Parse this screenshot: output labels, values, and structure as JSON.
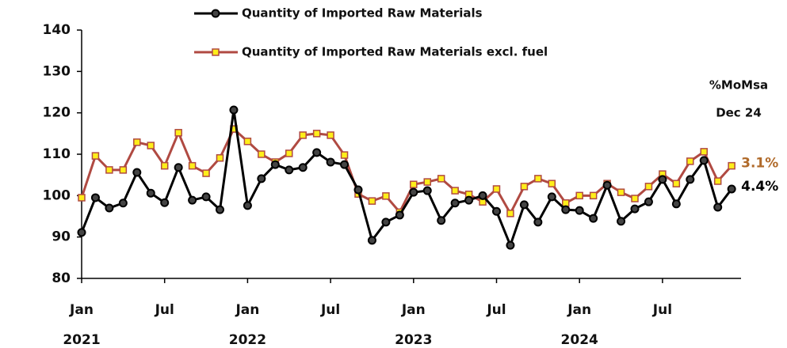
{
  "chart_data": {
    "type": "line",
    "categories": [
      "Jan",
      null,
      null,
      null,
      null,
      null,
      "Jul",
      null,
      null,
      null,
      null,
      null,
      "Jan",
      null,
      null,
      null,
      null,
      null,
      "Jul",
      null,
      null,
      null,
      null,
      null,
      "Jan",
      null,
      null,
      null,
      null,
      null,
      "Jul",
      null,
      null,
      null,
      null,
      null,
      "Jan",
      null,
      null,
      null,
      null,
      null,
      "Jul",
      null,
      null,
      null,
      null,
      null
    ],
    "year_labels": [
      "2021",
      "2022",
      "2023",
      "2024"
    ],
    "series": [
      {
        "name": "Quantity of Imported Raw Materials",
        "color": "#000000",
        "marker": "circle",
        "end_label": "4.4%",
        "end_label_color": "#000000",
        "values": [
          91.1,
          99.5,
          97,
          98.2,
          105.6,
          100.6,
          98.3,
          106.8,
          98.9,
          99.7,
          96.6,
          120.7,
          97.6,
          104.1,
          107.5,
          106.2,
          106.8,
          110.4,
          108.1,
          107.5,
          101.4,
          89.2,
          93.6,
          95.3,
          100.8,
          101.2,
          94,
          98.2,
          98.9,
          100,
          96.2,
          88,
          97.8,
          93.6,
          99.7,
          96.6,
          96.4,
          94.5,
          102.5,
          93.8,
          96.8,
          98.5,
          103.9,
          98,
          103.9,
          108.5,
          97.2,
          101.6
        ]
      },
      {
        "name": "Quantity of Imported Raw Materials excl. fuel",
        "color": "#b04a42",
        "marker": "square",
        "marker_fill": "#ffee1a",
        "end_label": "3.1%",
        "end_label_color": "#b06a2a",
        "values": [
          99.5,
          109.6,
          106.2,
          106.2,
          112.9,
          112.1,
          107.2,
          115.2,
          107.2,
          105.4,
          109.1,
          116.1,
          113.1,
          110,
          108.1,
          110.2,
          114.6,
          115,
          114.6,
          109.8,
          100.4,
          98.7,
          99.9,
          96,
          102.7,
          103.3,
          104.1,
          101.2,
          100.3,
          98.5,
          101.6,
          95.7,
          102.2,
          104.1,
          102.9,
          98.2,
          100,
          100,
          102.9,
          100.8,
          99.3,
          102.2,
          105.2,
          102.9,
          108.3,
          110.6,
          103.5,
          107.2
        ]
      }
    ],
    "annotations": [
      "%MoMsa",
      "Dec 24"
    ],
    "ylim": [
      80,
      140
    ],
    "yticks": [
      80,
      90,
      100,
      110,
      120,
      130,
      140
    ],
    "grid": false
  }
}
